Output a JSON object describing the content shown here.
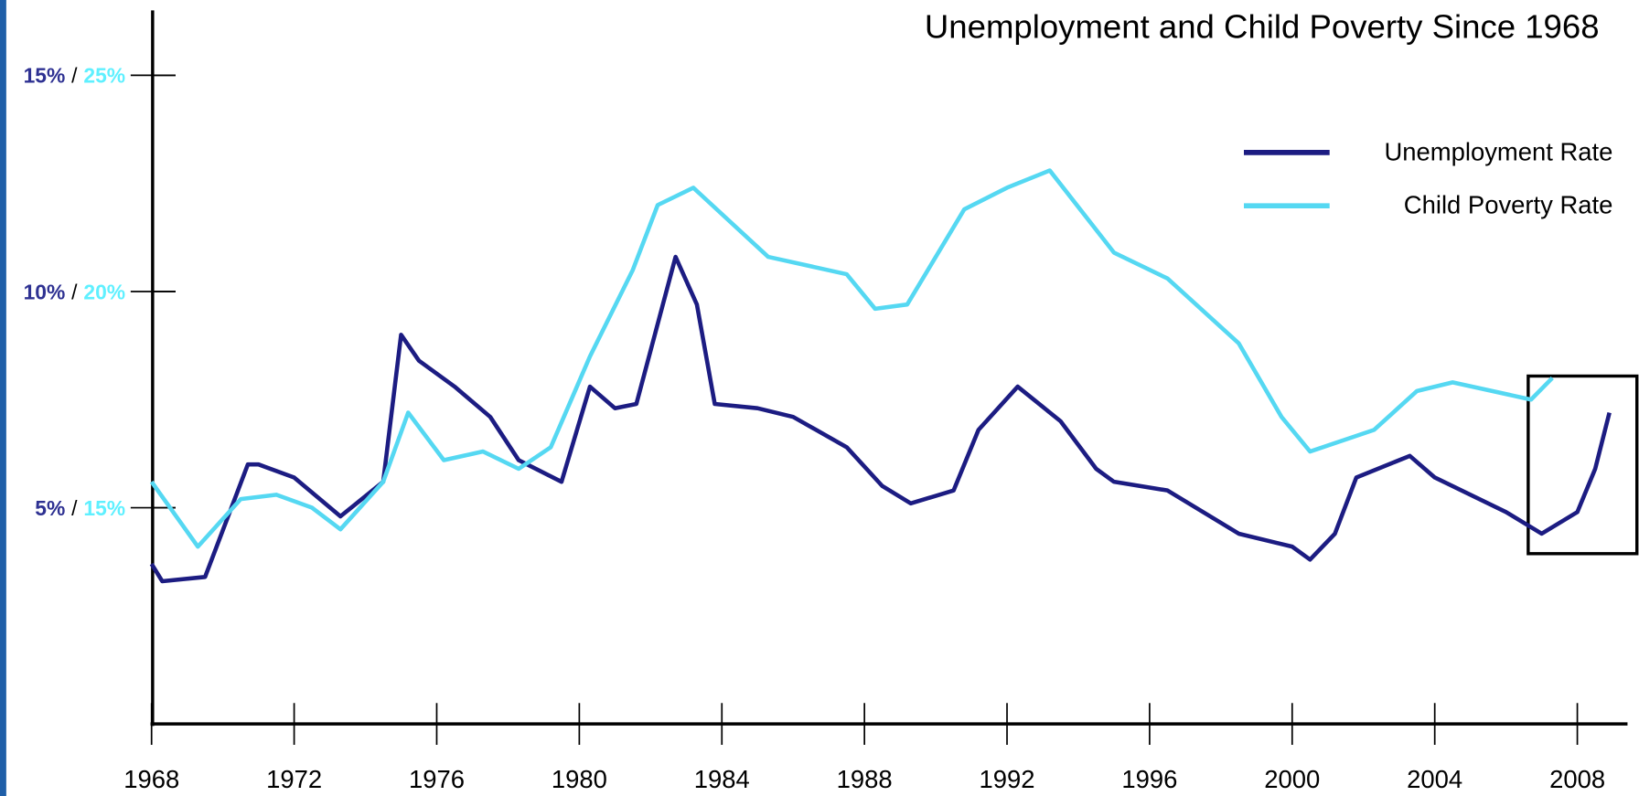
{
  "chart_data": {
    "type": "line",
    "title": "Unemployment and Child Poverty Since 1968",
    "xlim": [
      1968,
      2009.3
    ],
    "xticks": [
      1968,
      1972,
      1976,
      1980,
      1984,
      1988,
      1992,
      1996,
      2000,
      2004,
      2008
    ],
    "ylim": [
      0,
      16.5
    ],
    "yticks": [
      {
        "value": 5,
        "label": "5%"
      },
      {
        "value": 10,
        "label": "10%"
      },
      {
        "value": 15,
        "label": "15%"
      }
    ],
    "y2lim": [
      10,
      26.5
    ],
    "y2ticks": [
      {
        "value": 15,
        "label": "15%"
      },
      {
        "value": 20,
        "label": "20%"
      },
      {
        "value": 25,
        "label": "25%"
      }
    ],
    "tick_separator": "/",
    "legend": "top-right",
    "series": [
      {
        "name": "Unemployment Rate",
        "color": "#1c1c82",
        "x": [
          1968.0,
          1968.3,
          1969.5,
          1970.7,
          1971,
          1972,
          1973.3,
          1974.5,
          1975.0,
          1975.5,
          1976.5,
          1977.5,
          1978.3,
          1979.5,
          1980.3,
          1981,
          1981.6,
          1982.7,
          1983.3,
          1983.8,
          1985,
          1986,
          1987.5,
          1988.5,
          1989.3,
          1990.5,
          1991.2,
          1992.3,
          1993.5,
          1994.5,
          1995.0,
          1996.5,
          1997.5,
          1998.5,
          2000.0,
          2000.5,
          2001.2,
          2001.8,
          2003.3,
          2004.0,
          2006.0,
          2007.0,
          2008.0,
          2008.5,
          2008.9
        ],
        "values": [
          3.7,
          3.3,
          3.4,
          6.0,
          6.0,
          5.7,
          4.8,
          5.6,
          9.0,
          8.4,
          7.8,
          7.1,
          6.1,
          5.6,
          7.8,
          7.3,
          7.4,
          10.8,
          9.7,
          7.4,
          7.3,
          7.1,
          6.4,
          5.5,
          5.1,
          5.4,
          6.8,
          7.8,
          7.0,
          5.9,
          5.6,
          5.4,
          4.9,
          4.4,
          4.1,
          3.8,
          4.4,
          5.7,
          6.2,
          5.7,
          4.9,
          4.4,
          4.9,
          5.9,
          7.2
        ]
      },
      {
        "name": "Child Poverty Rate",
        "color": "#55d8f2",
        "axis": "y2",
        "x": [
          1968,
          1969.3,
          1970.5,
          1971.5,
          1972.5,
          1973.3,
          1974.5,
          1975.2,
          1976.2,
          1977.3,
          1978.3,
          1979.2,
          1980.3,
          1981.5,
          1982.2,
          1983.2,
          1985.3,
          1987.5,
          1988.3,
          1989.2,
          1990.8,
          1992.0,
          1993.2,
          1995.0,
          1996.5,
          1998.5,
          1999.7,
          2000.5,
          2002.3,
          2003.5,
          2004.5,
          2006.7,
          2007.3
        ],
        "values": [
          15.6,
          14.1,
          15.2,
          15.3,
          15.0,
          14.5,
          15.6,
          17.2,
          16.1,
          16.3,
          15.9,
          16.4,
          18.5,
          20.5,
          22.0,
          22.4,
          20.8,
          20.4,
          19.6,
          19.7,
          21.9,
          22.4,
          22.8,
          20.9,
          20.3,
          18.8,
          17.1,
          16.3,
          16.8,
          17.7,
          17.9,
          17.5,
          18.0
        ]
      }
    ]
  }
}
